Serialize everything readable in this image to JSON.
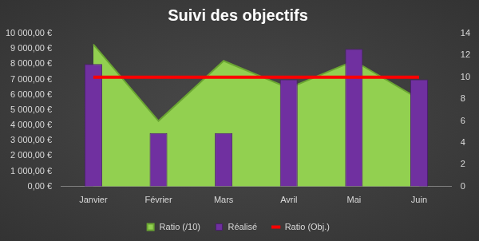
{
  "chart_data": {
    "type": "bar",
    "title": "Suivi des objectifs",
    "categories": [
      "Janvier",
      "Février",
      "Mars",
      "Avril",
      "Mai",
      "Juin"
    ],
    "series": [
      {
        "name": "Ratio (/10)",
        "type": "area",
        "color": "#92d050",
        "axis": "y2",
        "values": [
          13,
          6,
          11.5,
          9,
          11.5,
          8
        ]
      },
      {
        "name": "Réalisé",
        "type": "bar",
        "color": "#7030a0",
        "values": [
          8000,
          3500,
          3500,
          7000,
          9000,
          7000
        ]
      },
      {
        "name": "Ratio (Obj.)",
        "type": "line",
        "color": "#ff0000",
        "axis": "y2",
        "values": [
          10,
          10,
          10,
          10,
          10,
          10
        ]
      }
    ],
    "ylim": [
      0,
      10000
    ],
    "yticks": [
      {
        "value": 0,
        "label": "0,00 €"
      },
      {
        "value": 1000,
        "label": "1 000,00 €"
      },
      {
        "value": 2000,
        "label": "2 000,00 €"
      },
      {
        "value": 3000,
        "label": "3 000,00 €"
      },
      {
        "value": 4000,
        "label": "4 000,00 €"
      },
      {
        "value": 5000,
        "label": "5 000,00 €"
      },
      {
        "value": 6000,
        "label": "6 000,00 €"
      },
      {
        "value": 7000,
        "label": "7 000,00 €"
      },
      {
        "value": 8000,
        "label": "8 000,00 €"
      },
      {
        "value": 9000,
        "label": "9 000,00 €"
      },
      {
        "value": 10000,
        "label": "10 000,00 €"
      }
    ],
    "y2lim": [
      0,
      14
    ],
    "y2ticks": [
      0,
      2,
      4,
      6,
      8,
      10,
      12,
      14
    ],
    "grid": false,
    "legend": "bottom"
  }
}
